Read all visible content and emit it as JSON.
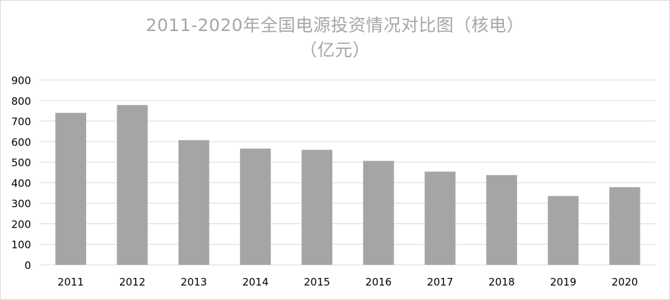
{
  "chart_data": {
    "type": "bar",
    "title_line1": "2011-2020年全国电源投资情况对比图（核电）",
    "title_line2": "（亿元）",
    "categories": [
      "2011",
      "2012",
      "2013",
      "2014",
      "2015",
      "2016",
      "2017",
      "2018",
      "2019",
      "2020"
    ],
    "values": [
      740,
      778,
      607,
      566,
      560,
      506,
      454,
      437,
      335,
      378
    ],
    "ylim": [
      0,
      900
    ],
    "yticks": [
      0,
      100,
      200,
      300,
      400,
      500,
      600,
      700,
      800,
      900
    ],
    "grid": true,
    "legend": "none",
    "colors": {
      "bar": "#a6a5a5",
      "grid": "#d9d9d9",
      "title": "#a6a6a6",
      "tick": "#000000"
    }
  }
}
